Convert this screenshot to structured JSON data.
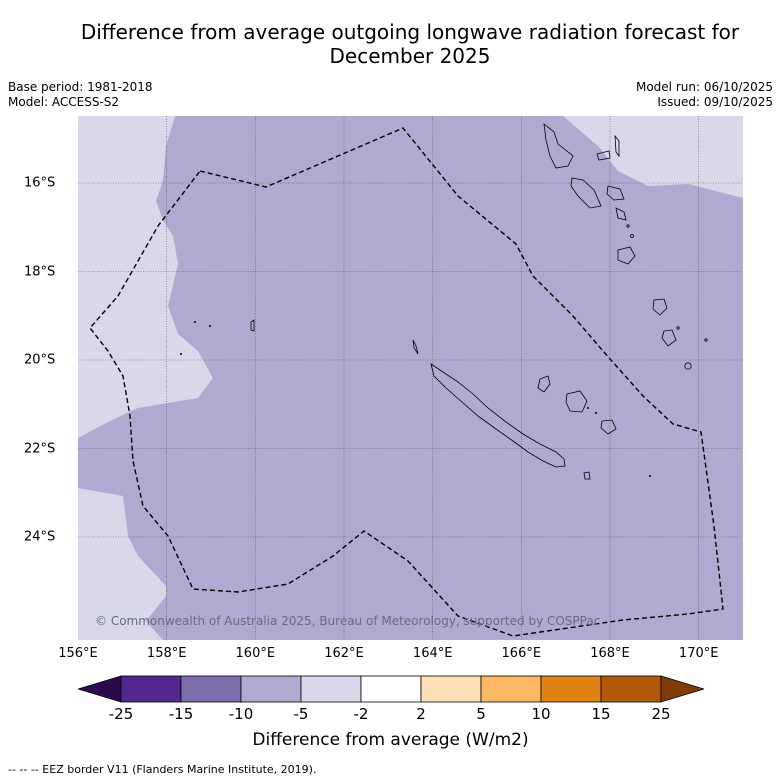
{
  "title": "Difference from average outgoing longwave radiation forecast for December 2025",
  "meta": {
    "base_period": "Base period: 1981-2018",
    "model": "Model: ACCESS-S2",
    "model_run": "Model run: 06/10/2025",
    "issued": "Issued: 09/10/2025"
  },
  "map": {
    "lon_range": [
      156,
      171
    ],
    "lat_range": [
      -26.0,
      -14.5
    ],
    "x_ticks": [
      "156°E",
      "158°E",
      "160°E",
      "162°E",
      "164°E",
      "166°E",
      "168°E",
      "170°E"
    ],
    "y_ticks": [
      "16°S",
      "18°S",
      "20°S",
      "22°S",
      "24°S"
    ],
    "copyright": "© Commonwealth of Australia 2025, Bureau of Meteorology, supported by COSPPac"
  },
  "colors": {
    "band_minus5_to_minus2": "#d8d8ea",
    "band_minus10_to_minus5": "#b0aad2",
    "grid": "#555555"
  },
  "colorbar": {
    "ticks": [
      "-25",
      "-15",
      "-10",
      "-5",
      "-2",
      "2",
      "5",
      "10",
      "15",
      "25"
    ],
    "colors": [
      "#2d0a4e",
      "#54278f",
      "#7c6eac",
      "#b0aad2",
      "#d8d8ea",
      "#ffffff",
      "#fee0b6",
      "#fdb863",
      "#e08214",
      "#b35806",
      "#7f3b08"
    ],
    "label": "Difference from average (W/m2)"
  },
  "footer": "--  --  -- EEZ border V11 (Flanders Marine Institute, 2019)."
}
